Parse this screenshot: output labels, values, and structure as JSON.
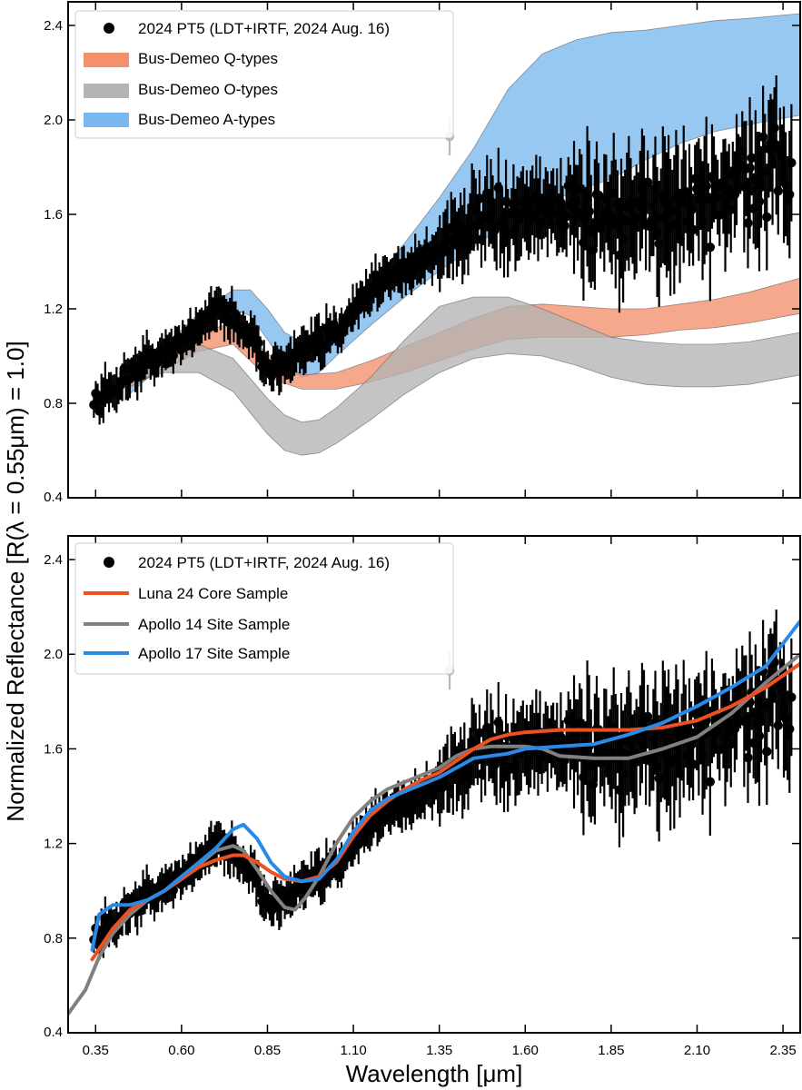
{
  "chart_data": [
    {
      "type": "scatter",
      "title": "",
      "xlabel": "",
      "ylabel": "Normalized Reflectance [R(λ = 0.55μm) = 1.0]",
      "xlim": [
        0.27,
        2.4
      ],
      "ylim": [
        0.4,
        2.5
      ],
      "x_ticks": [
        0.35,
        0.6,
        0.85,
        1.1,
        1.35,
        1.6,
        1.85,
        2.1,
        2.35
      ],
      "y_ticks": [
        "0.4",
        "0.8",
        "1.2",
        "1.6",
        "2.0",
        "2.4"
      ],
      "legend_position": "top-left",
      "legend": [
        {
          "label": "2024 PT5 (LDT+IRTF, 2024 Aug. 16)",
          "kind": "marker",
          "color": "#000000"
        },
        {
          "label": "Bus-Demeo Q-types",
          "kind": "band",
          "color": "#f4906c"
        },
        {
          "label": "Bus-Demeo O-types",
          "kind": "band",
          "color": "#b4b4b4"
        },
        {
          "label": "Bus-Demeo A-types",
          "kind": "band",
          "color": "#78b8ee"
        }
      ],
      "series": [
        {
          "name": "2024 PT5 (LDT+IRTF, 2024 Aug. 16)",
          "type": "points",
          "note": "x/y read at anchor points; points densely sampled along this profile with ±scatter and error bars",
          "x": [
            0.35,
            0.4,
            0.45,
            0.5,
            0.55,
            0.6,
            0.65,
            0.7,
            0.75,
            0.8,
            0.85,
            0.88,
            0.92,
            0.96,
            1.0,
            1.05,
            1.1,
            1.15,
            1.2,
            1.25,
            1.3,
            1.35,
            1.4,
            1.45,
            1.5,
            1.6,
            1.7,
            1.8,
            1.9,
            2.0,
            2.1,
            2.2,
            2.3,
            2.37
          ],
          "y": [
            0.8,
            0.86,
            0.93,
            0.98,
            1.0,
            1.06,
            1.13,
            1.2,
            1.17,
            1.08,
            0.97,
            0.94,
            0.99,
            1.02,
            1.05,
            1.1,
            1.2,
            1.28,
            1.33,
            1.37,
            1.41,
            1.45,
            1.53,
            1.56,
            1.58,
            1.6,
            1.61,
            1.62,
            1.6,
            1.62,
            1.65,
            1.7,
            1.75,
            1.8
          ]
        },
        {
          "name": "Bus-Demeo Q-types",
          "type": "band",
          "x": [
            0.45,
            0.55,
            0.65,
            0.75,
            0.85,
            0.95,
            1.05,
            1.15,
            1.25,
            1.35,
            1.45,
            1.55,
            1.65,
            1.75,
            1.85,
            1.95,
            2.05,
            2.15,
            2.25,
            2.4
          ],
          "lower": [
            0.87,
            0.94,
            1.02,
            1.05,
            0.91,
            0.86,
            0.86,
            0.89,
            0.93,
            0.98,
            1.03,
            1.07,
            1.08,
            1.08,
            1.08,
            1.09,
            1.11,
            1.12,
            1.14,
            1.18
          ],
          "upper": [
            0.93,
            1.01,
            1.1,
            1.14,
            1.01,
            0.92,
            0.93,
            0.98,
            1.04,
            1.1,
            1.16,
            1.21,
            1.22,
            1.21,
            1.2,
            1.2,
            1.22,
            1.24,
            1.27,
            1.33
          ]
        },
        {
          "name": "Bus-Demeo O-types",
          "type": "band",
          "x": [
            0.45,
            0.55,
            0.65,
            0.75,
            0.85,
            0.9,
            0.95,
            1.0,
            1.05,
            1.15,
            1.25,
            1.35,
            1.45,
            1.55,
            1.65,
            1.75,
            1.85,
            1.95,
            2.05,
            2.15,
            2.25,
            2.4
          ],
          "lower": [
            0.89,
            0.93,
            0.93,
            0.85,
            0.67,
            0.6,
            0.58,
            0.59,
            0.63,
            0.73,
            0.84,
            0.93,
            0.99,
            1.01,
            1.0,
            0.96,
            0.91,
            0.88,
            0.87,
            0.87,
            0.88,
            0.92
          ],
          "upper": [
            0.99,
            1.04,
            1.05,
            0.99,
            0.82,
            0.75,
            0.72,
            0.73,
            0.78,
            0.91,
            1.07,
            1.21,
            1.25,
            1.25,
            1.2,
            1.14,
            1.08,
            1.06,
            1.05,
            1.05,
            1.06,
            1.1
          ]
        },
        {
          "name": "Bus-Demeo A-types",
          "type": "band",
          "x": [
            0.45,
            0.55,
            0.65,
            0.75,
            0.8,
            0.85,
            0.9,
            0.95,
            1.0,
            1.05,
            1.15,
            1.25,
            1.35,
            1.45,
            1.55,
            1.65,
            1.75,
            1.85,
            1.95,
            2.05,
            2.15,
            2.25,
            2.4
          ],
          "lower": [
            0.84,
            0.97,
            1.1,
            1.2,
            1.17,
            1.07,
            0.96,
            0.91,
            0.93,
            1.0,
            1.13,
            1.25,
            1.36,
            1.46,
            1.57,
            1.64,
            1.7,
            1.75,
            1.83,
            1.9,
            1.95,
            1.98,
            2.02
          ],
          "upper": [
            0.9,
            1.04,
            1.18,
            1.28,
            1.28,
            1.2,
            1.1,
            1.06,
            1.09,
            1.15,
            1.3,
            1.48,
            1.67,
            1.88,
            2.13,
            2.28,
            2.34,
            2.37,
            2.38,
            2.4,
            2.42,
            2.43,
            2.45
          ]
        }
      ]
    },
    {
      "type": "line",
      "title": "",
      "xlabel": "Wavelength [μm]",
      "ylabel": "Normalized Reflectance [R(λ = 0.55μm) = 1.0]",
      "xlim": [
        0.27,
        2.4
      ],
      "ylim": [
        0.4,
        2.5
      ],
      "x_ticks": [
        0.35,
        0.6,
        0.85,
        1.1,
        1.35,
        1.6,
        1.85,
        2.1,
        2.35
      ],
      "x_tick_labels": [
        "0.35",
        "0.60",
        "0.85",
        "1.10",
        "1.35",
        "1.60",
        "1.85",
        "2.10",
        "2.35"
      ],
      "y_ticks": [
        "0.4",
        "0.8",
        "1.2",
        "1.6",
        "2.0",
        "2.4"
      ],
      "legend_position": "top-left",
      "legend": [
        {
          "label": "2024 PT5 (LDT+IRTF, 2024 Aug. 16)",
          "kind": "marker",
          "color": "#000000"
        },
        {
          "label": "Luna 24 Core Sample",
          "kind": "line",
          "color": "#ee5020"
        },
        {
          "label": "Apollo 14 Site Sample",
          "kind": "line",
          "color": "#808080"
        },
        {
          "label": "Apollo 17 Site Sample",
          "kind": "line",
          "color": "#2a8ae8"
        }
      ],
      "series": [
        {
          "name": "2024 PT5 (LDT+IRTF, 2024 Aug. 16)",
          "type": "points",
          "same_as_top_panel": true
        },
        {
          "name": "Luna 24 Core Sample",
          "x": [
            0.34,
            0.4,
            0.45,
            0.5,
            0.55,
            0.6,
            0.65,
            0.7,
            0.75,
            0.78,
            0.82,
            0.86,
            0.9,
            0.95,
            1.0,
            1.05,
            1.1,
            1.15,
            1.2,
            1.25,
            1.3,
            1.35,
            1.4,
            1.45,
            1.5,
            1.55,
            1.6,
            1.7,
            1.8,
            1.9,
            2.0,
            2.1,
            2.2,
            2.3,
            2.4
          ],
          "y": [
            0.71,
            0.84,
            0.92,
            0.96,
            1.0,
            1.05,
            1.1,
            1.13,
            1.15,
            1.15,
            1.12,
            1.08,
            1.05,
            1.04,
            1.06,
            1.12,
            1.23,
            1.32,
            1.38,
            1.43,
            1.47,
            1.5,
            1.55,
            1.6,
            1.64,
            1.66,
            1.67,
            1.68,
            1.68,
            1.68,
            1.69,
            1.72,
            1.78,
            1.86,
            1.96
          ]
        },
        {
          "name": "Apollo 14 Site Sample",
          "x": [
            0.27,
            0.32,
            0.36,
            0.4,
            0.45,
            0.5,
            0.55,
            0.6,
            0.65,
            0.7,
            0.75,
            0.78,
            0.82,
            0.86,
            0.9,
            0.93,
            0.96,
            1.0,
            1.05,
            1.1,
            1.15,
            1.2,
            1.25,
            1.3,
            1.35,
            1.4,
            1.45,
            1.5,
            1.55,
            1.6,
            1.65,
            1.7,
            1.8,
            1.9,
            2.0,
            2.1,
            2.2,
            2.3,
            2.4
          ],
          "y": [
            0.48,
            0.58,
            0.72,
            0.82,
            0.9,
            0.96,
            1.0,
            1.05,
            1.11,
            1.17,
            1.19,
            1.17,
            1.09,
            1.0,
            0.93,
            0.92,
            0.97,
            1.06,
            1.2,
            1.31,
            1.38,
            1.43,
            1.46,
            1.49,
            1.52,
            1.57,
            1.6,
            1.61,
            1.61,
            1.61,
            1.6,
            1.57,
            1.56,
            1.56,
            1.6,
            1.65,
            1.75,
            1.88,
            2.0
          ]
        },
        {
          "name": "Apollo 17 Site Sample",
          "x": [
            0.34,
            0.36,
            0.4,
            0.45,
            0.5,
            0.55,
            0.6,
            0.65,
            0.7,
            0.75,
            0.78,
            0.82,
            0.86,
            0.9,
            0.95,
            1.0,
            1.05,
            1.1,
            1.15,
            1.2,
            1.25,
            1.3,
            1.35,
            1.4,
            1.45,
            1.5,
            1.55,
            1.6,
            1.7,
            1.8,
            1.9,
            2.0,
            2.1,
            2.2,
            2.3,
            2.4
          ],
          "y": [
            0.75,
            0.9,
            0.94,
            0.94,
            0.96,
            1.0,
            1.06,
            1.12,
            1.18,
            1.26,
            1.28,
            1.22,
            1.12,
            1.06,
            1.04,
            1.05,
            1.13,
            1.25,
            1.34,
            1.39,
            1.42,
            1.45,
            1.48,
            1.52,
            1.56,
            1.57,
            1.58,
            1.6,
            1.61,
            1.62,
            1.66,
            1.71,
            1.78,
            1.86,
            1.95,
            2.14
          ]
        }
      ]
    }
  ]
}
